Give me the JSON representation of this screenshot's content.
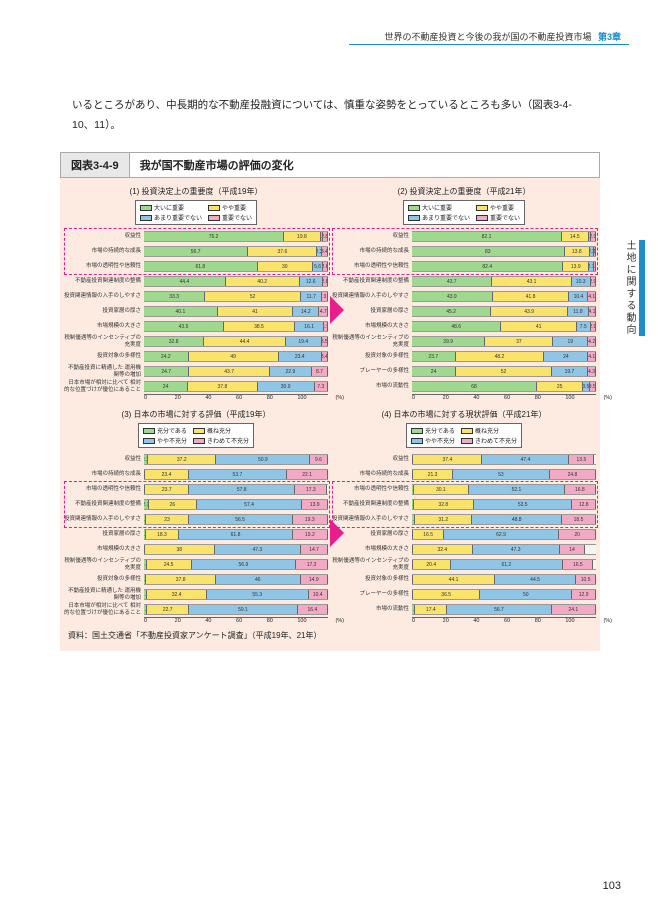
{
  "header": {
    "topic": "世界の不動産投資と今後の我が国の不動産投資市場",
    "chapter": "第3章"
  },
  "side_tab": "土地に関する動向",
  "intro": "いるところがあり、中長期的な不動産投融資については、慎重な姿勢をとっているところも多い（図表3-4-10、11）。",
  "figure": {
    "num": "図表3-4-9",
    "title": "我が国不動産市場の評価の変化",
    "source": "資料：国土交通省「不動産投資家アンケート調査」（平成19年、21年）"
  },
  "colors": {
    "c_green": "#9fd98f",
    "c_yellow": "#f9e36b",
    "c_blue": "#8fc6e6",
    "c_pink": "#f2a9c4",
    "c_bg": "#fdebe2",
    "c_dash": "#e91e8c"
  },
  "legend_importance": [
    "大いに重要",
    "やや重要",
    "あまり重要でない",
    "重要でない"
  ],
  "legend_eval": [
    "充分である",
    "概ね充分",
    "やや不充分",
    "きわめて不充分"
  ],
  "panels": [
    {
      "title": "(1) 投資決定上の重要度（平成19年）",
      "legend": "importance",
      "rows": [
        {
          "label": "収益性",
          "v": [
            76.2,
            19.8,
            1.1,
            2.8
          ]
        },
        {
          "label": "市場の持続的な成長",
          "v": [
            56.7,
            37.6,
            2.3,
            3.4
          ]
        },
        {
          "label": "市場の透明性や信頼性",
          "v": [
            61.8,
            30.0,
            5.6,
            2.6
          ]
        },
        {
          "label": "不動産投資関連制度の整備",
          "v": [
            44.4,
            40.2,
            12.6,
            2.8
          ]
        },
        {
          "label": "投資関連情報の入手のしやすさ",
          "v": [
            33.3,
            52.0,
            11.7,
            3.0
          ]
        },
        {
          "label": "投資家層の厚さ",
          "v": [
            40.1,
            41.0,
            14.2,
            4.7
          ]
        },
        {
          "label": "市場規模の大きさ",
          "v": [
            43.5,
            38.5,
            16.1,
            1.9
          ]
        },
        {
          "label": "税制優遇等のインセンティブの充実度",
          "v": [
            32.8,
            44.4,
            19.4,
            3.5
          ]
        },
        {
          "label": "投資対象の多様性",
          "v": [
            24.2,
            49.0,
            23.4,
            3.4
          ]
        },
        {
          "label": "不動産投資に精通した\n運用機関等の増加",
          "v": [
            24.7,
            43.7,
            22.9,
            8.7
          ]
        },
        {
          "label": "日本市場が相対に比べて\n相対的な位置づけが優位にあること",
          "v": [
            24.0,
            37.8,
            30.9,
            7.3
          ]
        }
      ],
      "dashed": {
        "from": 0,
        "to": 3
      }
    },
    {
      "title": "(2) 投資決定上の重要度（平成21年）",
      "legend": "importance",
      "rows": [
        {
          "label": "収益性",
          "v": [
            82.1,
            14.5,
            1.2,
            2.9
          ]
        },
        {
          "label": "市場の持続的な成長",
          "v": [
            83.0,
            13.8,
            2.3,
            1.0
          ]
        },
        {
          "label": "市場の透明性や信頼性",
          "v": [
            82.4,
            13.9,
            2.7,
            1.1
          ]
        },
        {
          "label": "不動産投資関連制度の整備",
          "v": [
            43.7,
            43.1,
            10.3,
            2.9
          ]
        },
        {
          "label": "投資関連情報の入手のしやすさ",
          "v": [
            43.9,
            41.8,
            10.4,
            4.1
          ]
        },
        {
          "label": "投資家層の厚さ",
          "v": [
            45.2,
            43.9,
            11.8,
            4.1
          ]
        },
        {
          "label": "市場規模の大きさ",
          "v": [
            48.6,
            41.0,
            7.5,
            2.9
          ]
        },
        {
          "label": "税制優遇等のインセンティブの充実度",
          "v": [
            39.9,
            37.0,
            19.0,
            4.2
          ]
        },
        {
          "label": "投資対象の多様性",
          "v": [
            23.7,
            48.2,
            24.0,
            4.1
          ]
        },
        {
          "label": "プレーヤーの多様性",
          "v": [
            24.0,
            52.0,
            19.7,
            4.3
          ]
        },
        {
          "label": "市場の流動性",
          "v": [
            68.0,
            25.0,
            3.5,
            3.5
          ]
        }
      ],
      "dashed": {
        "from": 0,
        "to": 3
      }
    },
    {
      "title": "(3) 日本の市場に対する評価（平成19年）",
      "legend": "eval",
      "rows": [
        {
          "label": "収益性",
          "v": [
            2.2,
            37.2,
            50.9,
            9.6
          ]
        },
        {
          "label": "市場の持続的な成長",
          "v": [
            0.8,
            23.4,
            53.7,
            22.1
          ]
        },
        {
          "label": "市場の透明性や信頼性",
          "v": [
            0.8,
            23.7,
            57.8,
            17.3
          ]
        },
        {
          "label": "不動産投資関連制度の整備",
          "v": [
            2.7,
            26.0,
            57.4,
            13.9
          ]
        },
        {
          "label": "投資関連情報の入手のしやすさ",
          "v": [
            1.3,
            23.0,
            56.5,
            19.3
          ]
        },
        {
          "label": "投資家層の厚さ",
          "v": [
            0.9,
            18.3,
            61.8,
            19.2
          ]
        },
        {
          "label": "市場規模の大きさ",
          "v": [
            0,
            38.0,
            47.3,
            14.7
          ]
        },
        {
          "label": "税制優遇等のインセンティブの充実度",
          "v": [
            1.4,
            24.5,
            56.9,
            17.3
          ]
        },
        {
          "label": "投資対象の多様性",
          "v": [
            1.3,
            37.8,
            46.0,
            14.9
          ]
        },
        {
          "label": "不動産投資に精通した\n運用機関等の増加",
          "v": [
            1.8,
            32.4,
            55.3,
            10.4
          ]
        },
        {
          "label": "日本市場が相対に比べて\n相対的な位置づけが優位にあること",
          "v": [
            1.8,
            22.7,
            59.1,
            16.4
          ]
        }
      ],
      "dashed": {
        "from": 2,
        "to": 5
      }
    },
    {
      "title": "(4) 日本の市場に対する現状評価（平成21年）",
      "legend": "eval",
      "rows": [
        {
          "label": "収益性",
          "v": [
            0.8,
            37.4,
            47.4,
            13.5
          ]
        },
        {
          "label": "市場の持続的な成長",
          "v": [
            0.8,
            21.3,
            53.0,
            24.8
          ]
        },
        {
          "label": "市場の透明性や信頼性",
          "v": [
            0.9,
            30.1,
            52.1,
            16.8
          ]
        },
        {
          "label": "不動産投資関連制度の整備",
          "v": [
            0.9,
            32.8,
            53.5,
            12.8
          ]
        },
        {
          "label": "投資関連情報の入手のしやすさ",
          "v": [
            1.7,
            31.2,
            48.8,
            18.5
          ]
        },
        {
          "label": "投資家層の厚さ",
          "v": [
            0.8,
            16.5,
            62.9,
            20.0
          ]
        },
        {
          "label": "市場規模の大きさ",
          "v": [
            0.4,
            32.4,
            47.3,
            14.0
          ]
        },
        {
          "label": "税制優遇等のインセンティブの充実度",
          "v": [
            0.4,
            20.4,
            61.2,
            16.5
          ]
        },
        {
          "label": "投資対象の多様性",
          "v": [
            0.8,
            44.1,
            44.5,
            10.5
          ]
        },
        {
          "label": "プレーヤーの多様性",
          "v": [
            0.6,
            36.5,
            50.0,
            12.9
          ]
        },
        {
          "label": "市場の流動性",
          "v": [
            1.8,
            17.4,
            56.7,
            24.1
          ]
        }
      ],
      "dashed": {
        "from": 2,
        "to": 5
      }
    }
  ],
  "axis_ticks": [
    "0",
    "20",
    "40",
    "60",
    "80",
    "100"
  ],
  "axis_unit": "(%)",
  "page_number": "103"
}
